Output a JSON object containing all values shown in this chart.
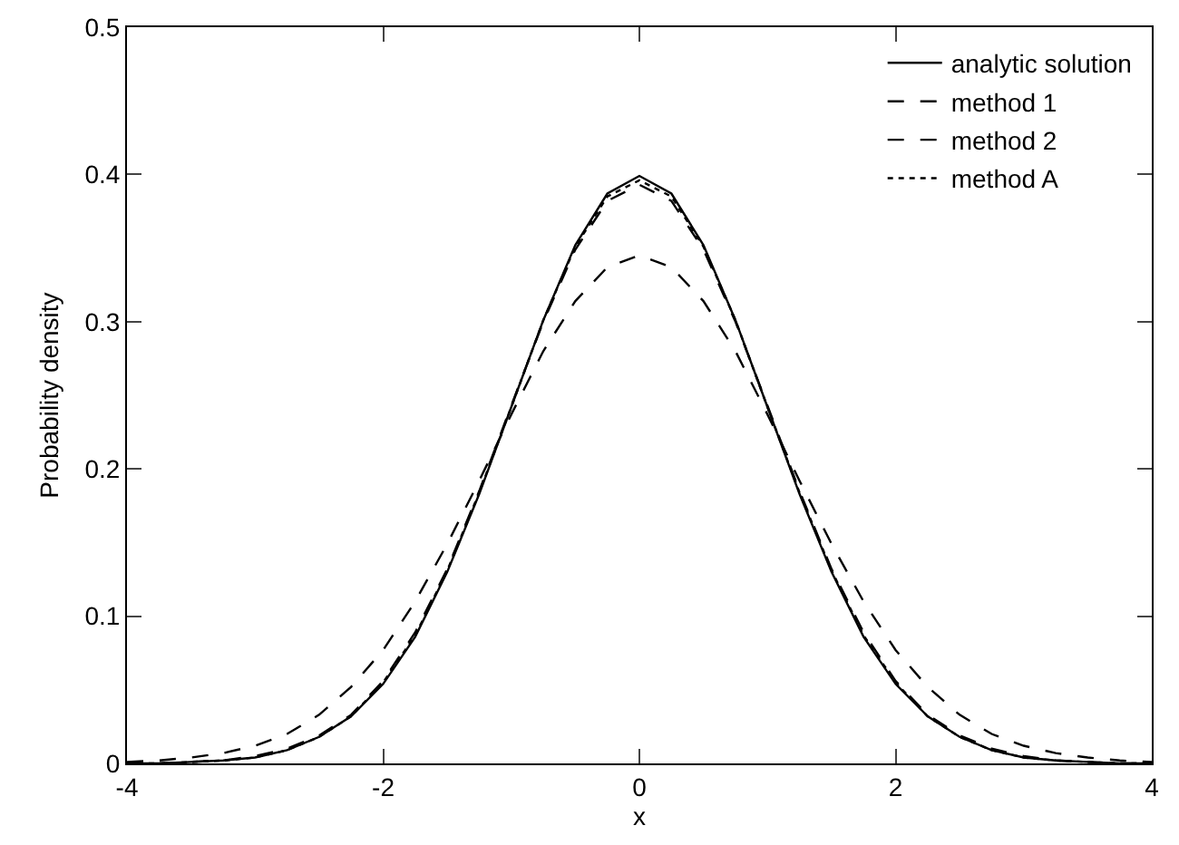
{
  "chart_data": {
    "type": "line",
    "xlabel": "x",
    "ylabel": "Probability density",
    "x": [
      -4,
      -3.75,
      -3.5,
      -3.25,
      -3,
      -2.75,
      -2.5,
      -2.25,
      -2,
      -1.75,
      -1.5,
      -1.25,
      -1,
      -0.75,
      -0.5,
      -0.25,
      0,
      0.25,
      0.5,
      0.75,
      1,
      1.25,
      1.5,
      1.75,
      2,
      2.25,
      2.5,
      2.75,
      3,
      3.25,
      3.5,
      3.75,
      4
    ],
    "series": [
      {
        "name": "analytic solution",
        "color": "#000000",
        "line_style": "solid",
        "values": [
          0,
          0,
          0.001,
          0.002,
          0.004,
          0.009,
          0.018,
          0.032,
          0.054,
          0.086,
          0.13,
          0.183,
          0.242,
          0.301,
          0.352,
          0.387,
          0.399,
          0.387,
          0.352,
          0.301,
          0.242,
          0.183,
          0.13,
          0.086,
          0.054,
          0.032,
          0.018,
          0.009,
          0.004,
          0.002,
          0.001,
          0,
          0
        ]
      },
      {
        "name": "method 1",
        "color": "#000000",
        "line_style": "dashed",
        "values": [
          0.001,
          0.002,
          0.004,
          0.007,
          0.012,
          0.02,
          0.033,
          0.052,
          0.077,
          0.11,
          0.149,
          0.192,
          0.237,
          0.28,
          0.314,
          0.337,
          0.345,
          0.337,
          0.314,
          0.28,
          0.237,
          0.192,
          0.149,
          0.11,
          0.077,
          0.052,
          0.033,
          0.02,
          0.012,
          0.007,
          0.004,
          0.002,
          0.001
        ]
      },
      {
        "name": "method 2",
        "color": "#000000",
        "line_style": "dashed",
        "values": [
          0,
          0,
          0.001,
          0.002,
          0.005,
          0.01,
          0.019,
          0.033,
          0.056,
          0.089,
          0.132,
          0.185,
          0.243,
          0.3,
          0.349,
          0.382,
          0.393,
          0.382,
          0.349,
          0.3,
          0.243,
          0.185,
          0.132,
          0.089,
          0.056,
          0.033,
          0.019,
          0.01,
          0.005,
          0.002,
          0.001,
          0,
          0
        ]
      },
      {
        "name": "method A",
        "color": "#000000",
        "line_style": "dotted",
        "values": [
          0,
          0,
          0.001,
          0.002,
          0.004,
          0.009,
          0.018,
          0.032,
          0.055,
          0.087,
          0.131,
          0.184,
          0.242,
          0.301,
          0.351,
          0.385,
          0.396,
          0.385,
          0.351,
          0.301,
          0.242,
          0.184,
          0.131,
          0.087,
          0.055,
          0.032,
          0.018,
          0.009,
          0.004,
          0.002,
          0.001,
          0,
          0
        ]
      }
    ],
    "xlim": [
      -4,
      4
    ],
    "xticks": [
      -4,
      -2,
      0,
      2,
      4
    ],
    "ylim": [
      0,
      0.5
    ],
    "yticks": [
      0,
      0.1,
      0.2,
      0.3,
      0.4,
      0.5
    ],
    "grid": false,
    "legend": "top right",
    "marker": "none"
  }
}
